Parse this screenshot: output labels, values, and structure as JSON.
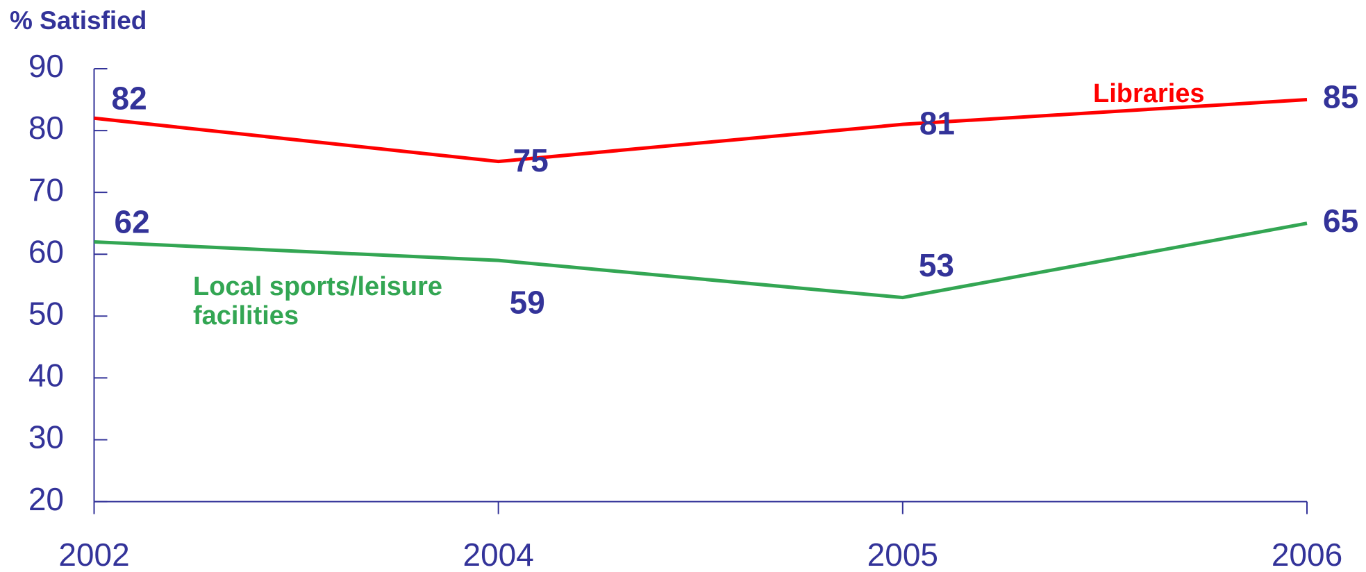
{
  "chart_data": {
    "type": "line",
    "y_label": "% Satisfied",
    "categories": [
      "2002",
      "2004",
      "2005",
      "2006"
    ],
    "series": [
      {
        "name": "Libraries",
        "color": "#ff0000",
        "values": [
          82,
          75,
          81,
          85
        ]
      },
      {
        "name": "Local sports/leisure facilities",
        "color": "#33a653",
        "values": [
          62,
          59,
          53,
          65
        ]
      }
    ],
    "ylim": [
      20,
      90
    ],
    "yticks": [
      20,
      30,
      40,
      50,
      60,
      70,
      80,
      90
    ]
  }
}
